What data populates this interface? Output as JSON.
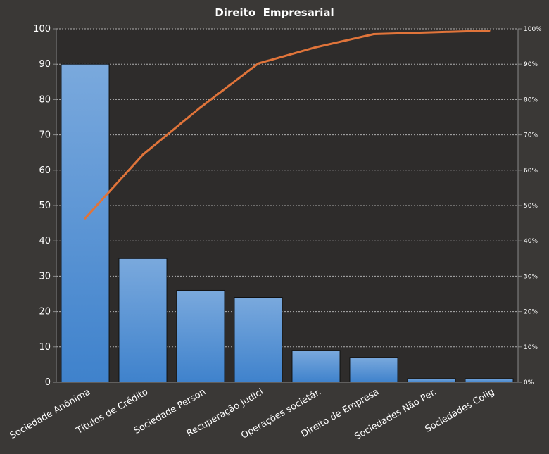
{
  "chart_data": {
    "type": "bar",
    "title": "Direito  Empresarial",
    "categories": [
      "Sociedade Anônima",
      "Títulos de Crédito",
      "Sociedade Person",
      "Recuperação Judici",
      "Operações societár.",
      "Direito de Empresa",
      "Sociedades Não Per.",
      "Sociedades Colig"
    ],
    "series": [
      {
        "type": "bar",
        "values": [
          90,
          35,
          26,
          24,
          9,
          7,
          1,
          1
        ]
      },
      {
        "type": "line",
        "axis": "right",
        "values": [
          46.4,
          64.4,
          77.8,
          90.2,
          94.8,
          98.5,
          99.0,
          99.5
        ]
      }
    ],
    "ylim": [
      0,
      100
    ],
    "y_ticks": [
      "0",
      "10",
      "20",
      "30",
      "40",
      "50",
      "60",
      "70",
      "80",
      "90",
      "100"
    ],
    "y2lim": [
      0,
      100
    ],
    "y2_ticks": [
      "0%",
      "10%",
      "20%",
      "30%",
      "40%",
      "50%",
      "60%",
      "70%",
      "80%",
      "90%",
      "100%"
    ],
    "grid": true,
    "legend": "none",
    "colors": {
      "background": "#3a3836",
      "plot_background": "#2e2c2b",
      "bar_top": "#7aa9dd",
      "bar_bottom": "#3f82cc",
      "line": "#e0743a",
      "text": "#ffffff",
      "grid": "#cfcfcf"
    }
  }
}
